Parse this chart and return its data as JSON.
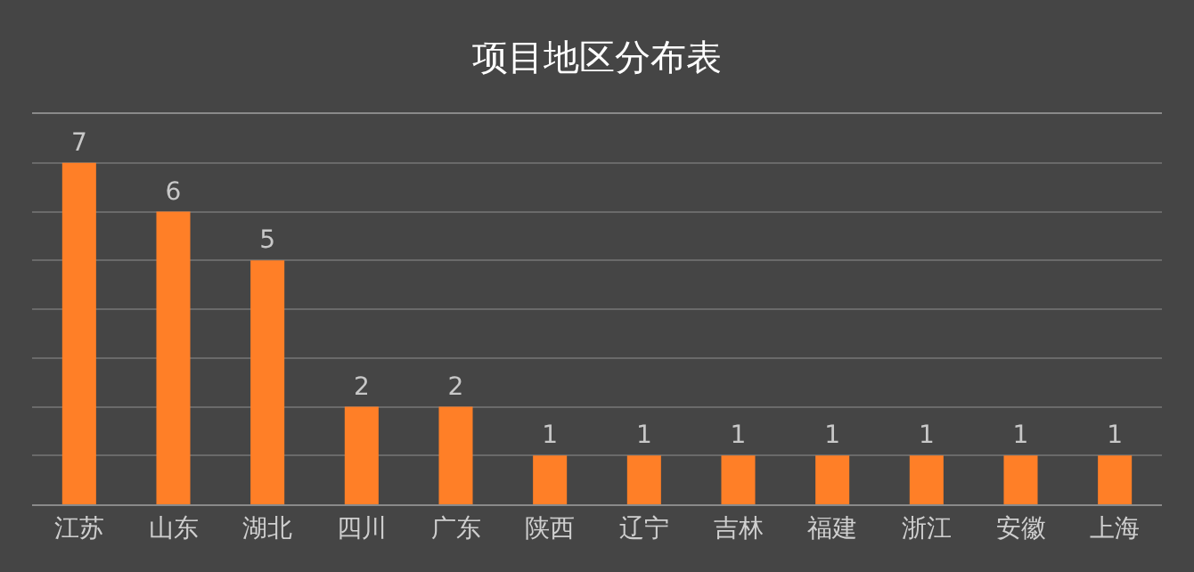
{
  "chart_data": {
    "type": "bar",
    "title": "项目地区分布表",
    "categories": [
      "江苏",
      "山东",
      "湖北",
      "四川",
      "广东",
      "陕西",
      "辽宁",
      "吉林",
      "福建",
      "浙江",
      "安徽",
      "上海"
    ],
    "values": [
      7,
      6,
      5,
      2,
      2,
      1,
      1,
      1,
      1,
      1,
      1,
      1
    ],
    "color": "#ff7f27",
    "ylim": [
      0,
      8
    ],
    "yticks": [
      {
        "value": 0,
        "label": null
      },
      {
        "value": 1,
        "label": null
      },
      {
        "value": 2,
        "label": null
      },
      {
        "value": 3,
        "label": null
      },
      {
        "value": 4,
        "label": null
      },
      {
        "value": 5,
        "label": null
      },
      {
        "value": 6,
        "label": null
      },
      {
        "value": 7,
        "label": null
      },
      {
        "value": 8,
        "label": null
      }
    ],
    "grid": "y",
    "data_labels": true,
    "tick_labels": "x",
    "legend": false
  }
}
